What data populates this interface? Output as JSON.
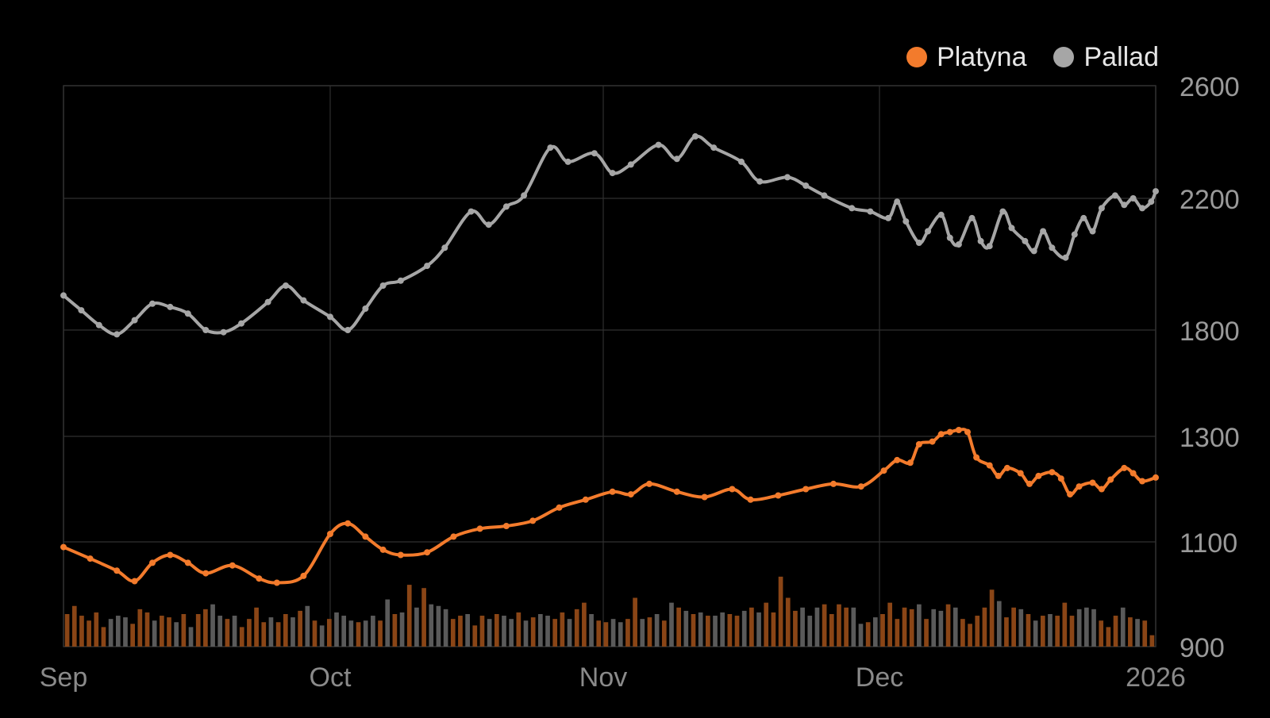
{
  "chart_data": {
    "type": "line",
    "title": "",
    "xlabel": "",
    "ylabel": "",
    "x_start": "2025-09-01",
    "x_end": "2026-01-01",
    "x_tick_labels": [
      "Sep",
      "Oct",
      "Nov",
      "Dec",
      "2026"
    ],
    "y_tick_labels": [
      "2600",
      "2200",
      "1800",
      "1300",
      "1100",
      "900"
    ],
    "ylim": [
      900,
      2600
    ],
    "grid": true,
    "legend_position": "top-right",
    "series": [
      {
        "name": "Platyna",
        "color": "#f37b2c",
        "bar_color": "#8a4516",
        "points": [
          [
            "2025-09-01",
            1090
          ],
          [
            "2025-09-04",
            1068
          ],
          [
            "2025-09-07",
            1045
          ],
          [
            "2025-09-09",
            1025
          ],
          [
            "2025-09-11",
            1060
          ],
          [
            "2025-09-13",
            1075
          ],
          [
            "2025-09-15",
            1060
          ],
          [
            "2025-09-17",
            1040
          ],
          [
            "2025-09-20",
            1055
          ],
          [
            "2025-09-23",
            1030
          ],
          [
            "2025-09-25",
            1022
          ],
          [
            "2025-09-28",
            1035
          ],
          [
            "2025-10-01",
            1115
          ],
          [
            "2025-10-03",
            1135
          ],
          [
            "2025-10-05",
            1110
          ],
          [
            "2025-10-07",
            1085
          ],
          [
            "2025-10-09",
            1075
          ],
          [
            "2025-10-12",
            1080
          ],
          [
            "2025-10-15",
            1110
          ],
          [
            "2025-10-18",
            1125
          ],
          [
            "2025-10-21",
            1130
          ],
          [
            "2025-10-24",
            1140
          ],
          [
            "2025-10-27",
            1165
          ],
          [
            "2025-10-30",
            1180
          ],
          [
            "2025-11-02",
            1195
          ],
          [
            "2025-11-04",
            1190
          ],
          [
            "2025-11-06",
            1210
          ],
          [
            "2025-11-09",
            1195
          ],
          [
            "2025-11-12",
            1185
          ],
          [
            "2025-11-15",
            1200
          ],
          [
            "2025-11-17",
            1180
          ],
          [
            "2025-11-20",
            1188
          ],
          [
            "2025-11-23",
            1200
          ],
          [
            "2025-11-26",
            1210
          ],
          [
            "2025-11-29",
            1205
          ],
          [
            "2025-12-02",
            1235
          ],
          [
            "2025-12-05",
            1255
          ],
          [
            "2025-12-08",
            1250
          ],
          [
            "2025-12-10",
            1285
          ],
          [
            "2025-12-13",
            1290
          ],
          [
            "2025-12-15",
            1310
          ],
          [
            "2025-12-17",
            1320
          ],
          [
            "2025-12-19",
            1330
          ],
          [
            "2025-12-21",
            1320
          ],
          [
            "2025-12-23",
            1260
          ],
          [
            "2025-12-26",
            1245
          ],
          [
            "2025-12-28",
            1225
          ],
          [
            "2025-12-30",
            1240
          ],
          [
            "2026-01-02",
            1230
          ],
          [
            "2026-01-04",
            1210
          ],
          [
            "2026-01-06",
            1225
          ],
          [
            "2026-01-09",
            1232
          ],
          [
            "2026-01-11",
            1220
          ],
          [
            "2026-01-13",
            1190
          ],
          [
            "2026-01-15",
            1205
          ],
          [
            "2026-01-18",
            1212
          ],
          [
            "2026-01-20",
            1200
          ],
          [
            "2026-01-22",
            1218
          ],
          [
            "2026-01-25",
            1240
          ],
          [
            "2026-01-27",
            1230
          ],
          [
            "2026-01-29",
            1215
          ],
          [
            "2026-02-01",
            1222
          ]
        ]
      },
      {
        "name": "Pallad",
        "color": "#a6a6a6",
        "bar_color": "#5a5a5a",
        "points": [
          [
            "2025-09-01",
            1905
          ],
          [
            "2025-09-03",
            1860
          ],
          [
            "2025-09-05",
            1815
          ],
          [
            "2025-09-07",
            1780
          ],
          [
            "2025-09-09",
            1830
          ],
          [
            "2025-09-11",
            1880
          ],
          [
            "2025-09-13",
            1870
          ],
          [
            "2025-09-15",
            1850
          ],
          [
            "2025-09-17",
            1800
          ],
          [
            "2025-09-19",
            1790
          ],
          [
            "2025-09-21",
            1820
          ],
          [
            "2025-09-24",
            1885
          ],
          [
            "2025-09-26",
            1935
          ],
          [
            "2025-09-28",
            1890
          ],
          [
            "2025-10-01",
            1840
          ],
          [
            "2025-10-03",
            1800
          ],
          [
            "2025-10-05",
            1865
          ],
          [
            "2025-10-07",
            1935
          ],
          [
            "2025-10-09",
            1950
          ],
          [
            "2025-10-12",
            1995
          ],
          [
            "2025-10-14",
            2050
          ],
          [
            "2025-10-17",
            2160
          ],
          [
            "2025-10-19",
            2120
          ],
          [
            "2025-10-21",
            2175
          ],
          [
            "2025-10-23",
            2210
          ],
          [
            "2025-10-26",
            2380
          ],
          [
            "2025-10-28",
            2330
          ],
          [
            "2025-10-31",
            2360
          ],
          [
            "2025-11-02",
            2290
          ],
          [
            "2025-11-04",
            2320
          ],
          [
            "2025-11-07",
            2390
          ],
          [
            "2025-11-09",
            2340
          ],
          [
            "2025-11-11",
            2420
          ],
          [
            "2025-11-13",
            2380
          ],
          [
            "2025-11-16",
            2330
          ],
          [
            "2025-11-18",
            2260
          ],
          [
            "2025-11-21",
            2275
          ],
          [
            "2025-11-23",
            2245
          ],
          [
            "2025-11-25",
            2210
          ],
          [
            "2025-11-28",
            2170
          ],
          [
            "2025-11-30",
            2160
          ],
          [
            "2025-12-03",
            2140
          ],
          [
            "2025-12-05",
            2190
          ],
          [
            "2025-12-07",
            2130
          ],
          [
            "2025-12-10",
            2065
          ],
          [
            "2025-12-12",
            2100
          ],
          [
            "2025-12-15",
            2150
          ],
          [
            "2025-12-17",
            2080
          ],
          [
            "2025-12-19",
            2060
          ],
          [
            "2025-12-22",
            2140
          ],
          [
            "2025-12-24",
            2070
          ],
          [
            "2025-12-26",
            2055
          ],
          [
            "2025-12-29",
            2160
          ],
          [
            "2025-12-31",
            2110
          ],
          [
            "2026-01-03",
            2070
          ],
          [
            "2026-01-05",
            2040
          ],
          [
            "2026-01-07",
            2100
          ],
          [
            "2026-01-09",
            2050
          ],
          [
            "2026-01-12",
            2020
          ],
          [
            "2026-01-14",
            2090
          ],
          [
            "2026-01-16",
            2140
          ],
          [
            "2026-01-18",
            2100
          ],
          [
            "2026-01-20",
            2170
          ],
          [
            "2026-01-23",
            2210
          ],
          [
            "2026-01-25",
            2180
          ],
          [
            "2026-01-27",
            2200
          ],
          [
            "2026-01-29",
            2170
          ],
          [
            "2026-01-31",
            2190
          ],
          [
            "2026-02-01",
            2225
          ]
        ]
      }
    ],
    "volume_bars": [
      [
        "Platyna",
        0.2
      ],
      [
        "Platyna",
        0.25
      ],
      [
        "Platyna",
        0.19
      ],
      [
        "Platyna",
        0.16
      ],
      [
        "Platyna",
        0.21
      ],
      [
        "Platyna",
        0.12
      ],
      [
        "Pallad",
        0.17
      ],
      [
        "Pallad",
        0.19
      ],
      [
        "Pallad",
        0.18
      ],
      [
        "Platyna",
        0.14
      ],
      [
        "Platyna",
        0.23
      ],
      [
        "Platyna",
        0.21
      ],
      [
        "Pallad",
        0.16
      ],
      [
        "Platyna",
        0.19
      ],
      [
        "Platyna",
        0.18
      ],
      [
        "Pallad",
        0.15
      ],
      [
        "Platyna",
        0.2
      ],
      [
        "Pallad",
        0.12
      ],
      [
        "Platyna",
        0.2
      ],
      [
        "Platyna",
        0.23
      ],
      [
        "Pallad",
        0.26
      ],
      [
        "Pallad",
        0.19
      ],
      [
        "Platyna",
        0.17
      ],
      [
        "Pallad",
        0.19
      ],
      [
        "Platyna",
        0.12
      ],
      [
        "Platyna",
        0.17
      ],
      [
        "Platyna",
        0.24
      ],
      [
        "Platyna",
        0.15
      ],
      [
        "Pallad",
        0.18
      ],
      [
        "Platyna",
        0.15
      ],
      [
        "Platyna",
        0.2
      ],
      [
        "Pallad",
        0.18
      ],
      [
        "Platyna",
        0.22
      ],
      [
        "Pallad",
        0.25
      ],
      [
        "Platyna",
        0.16
      ],
      [
        "Pallad",
        0.13
      ],
      [
        "Platyna",
        0.17
      ],
      [
        "Pallad",
        0.21
      ],
      [
        "Pallad",
        0.19
      ],
      [
        "Pallad",
        0.16
      ],
      [
        "Platyna",
        0.15
      ],
      [
        "Pallad",
        0.16
      ],
      [
        "Pallad",
        0.19
      ],
      [
        "Platyna",
        0.16
      ],
      [
        "Pallad",
        0.29
      ],
      [
        "Platyna",
        0.2
      ],
      [
        "Pallad",
        0.21
      ],
      [
        "Platyna",
        0.38
      ],
      [
        "Pallad",
        0.24
      ],
      [
        "Platyna",
        0.36
      ],
      [
        "Pallad",
        0.26
      ],
      [
        "Pallad",
        0.25
      ],
      [
        "Pallad",
        0.23
      ],
      [
        "Platyna",
        0.17
      ],
      [
        "Platyna",
        0.19
      ],
      [
        "Pallad",
        0.2
      ],
      [
        "Platyna",
        0.13
      ],
      [
        "Platyna",
        0.19
      ],
      [
        "Pallad",
        0.17
      ],
      [
        "Platyna",
        0.2
      ],
      [
        "Pallad",
        0.19
      ],
      [
        "Pallad",
        0.17
      ],
      [
        "Platyna",
        0.21
      ],
      [
        "Pallad",
        0.16
      ],
      [
        "Platyna",
        0.18
      ],
      [
        "Pallad",
        0.2
      ],
      [
        "Pallad",
        0.19
      ],
      [
        "Platyna",
        0.17
      ],
      [
        "Platyna",
        0.21
      ],
      [
        "Pallad",
        0.17
      ],
      [
        "Platyna",
        0.23
      ],
      [
        "Platyna",
        0.27
      ],
      [
        "Pallad",
        0.2
      ],
      [
        "Platyna",
        0.16
      ],
      [
        "Platyna",
        0.15
      ],
      [
        "Pallad",
        0.17
      ],
      [
        "Pallad",
        0.15
      ],
      [
        "Platyna",
        0.17
      ],
      [
        "Platyna",
        0.3
      ],
      [
        "Pallad",
        0.17
      ],
      [
        "Platyna",
        0.18
      ],
      [
        "Pallad",
        0.2
      ],
      [
        "Platyna",
        0.16
      ],
      [
        "Pallad",
        0.27
      ],
      [
        "Platyna",
        0.24
      ],
      [
        "Pallad",
        0.22
      ],
      [
        "Platyna",
        0.2
      ],
      [
        "Pallad",
        0.21
      ],
      [
        "Platyna",
        0.19
      ],
      [
        "Pallad",
        0.19
      ],
      [
        "Pallad",
        0.21
      ],
      [
        "Platyna",
        0.2
      ],
      [
        "Platyna",
        0.19
      ],
      [
        "Pallad",
        0.22
      ],
      [
        "Platyna",
        0.24
      ],
      [
        "Pallad",
        0.21
      ],
      [
        "Platyna",
        0.27
      ],
      [
        "Platyna",
        0.21
      ],
      [
        "Platyna",
        0.43
      ],
      [
        "Platyna",
        0.3
      ],
      [
        "Platyna",
        0.22
      ],
      [
        "Pallad",
        0.24
      ],
      [
        "Pallad",
        0.19
      ],
      [
        "Pallad",
        0.24
      ],
      [
        "Platyna",
        0.26
      ],
      [
        "Platyna",
        0.2
      ],
      [
        "Platyna",
        0.26
      ],
      [
        "Platyna",
        0.24
      ],
      [
        "Pallad",
        0.24
      ],
      [
        "Pallad",
        0.14
      ],
      [
        "Platyna",
        0.15
      ],
      [
        "Pallad",
        0.18
      ],
      [
        "Platyna",
        0.2
      ],
      [
        "Platyna",
        0.27
      ],
      [
        "Platyna",
        0.17
      ],
      [
        "Platyna",
        0.24
      ],
      [
        "Platyna",
        0.23
      ],
      [
        "Pallad",
        0.26
      ],
      [
        "Platyna",
        0.17
      ],
      [
        "Pallad",
        0.23
      ],
      [
        "Pallad",
        0.22
      ],
      [
        "Platyna",
        0.26
      ],
      [
        "Pallad",
        0.24
      ],
      [
        "Platyna",
        0.17
      ],
      [
        "Platyna",
        0.14
      ],
      [
        "Platyna",
        0.19
      ],
      [
        "Platyna",
        0.24
      ],
      [
        "Platyna",
        0.35
      ],
      [
        "Pallad",
        0.28
      ],
      [
        "Platyna",
        0.18
      ],
      [
        "Platyna",
        0.24
      ],
      [
        "Pallad",
        0.23
      ],
      [
        "Platyna",
        0.2
      ],
      [
        "Pallad",
        0.16
      ],
      [
        "Platyna",
        0.19
      ],
      [
        "Pallad",
        0.2
      ],
      [
        "Platyna",
        0.19
      ],
      [
        "Platyna",
        0.27
      ],
      [
        "Platyna",
        0.19
      ],
      [
        "Pallad",
        0.23
      ],
      [
        "Pallad",
        0.24
      ],
      [
        "Pallad",
        0.23
      ],
      [
        "Platyna",
        0.16
      ],
      [
        "Platyna",
        0.12
      ],
      [
        "Platyna",
        0.19
      ],
      [
        "Pallad",
        0.24
      ],
      [
        "Platyna",
        0.18
      ],
      [
        "Pallad",
        0.17
      ],
      [
        "Platyna",
        0.16
      ],
      [
        "Platyna",
        0.07
      ]
    ]
  }
}
